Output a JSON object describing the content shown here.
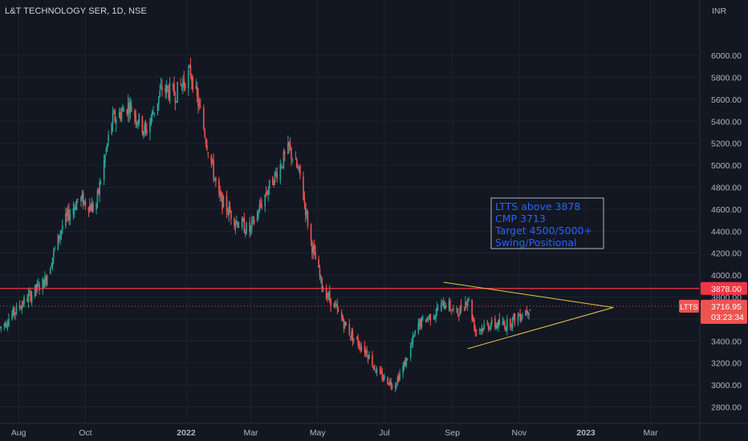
{
  "header": {
    "title": "L&T TECHNOLOGY SER, 1D, NSE",
    "currency": "INR"
  },
  "colors": {
    "background": "#131722",
    "grid": "#1e222d",
    "text": "#b2b5be",
    "up": "#26a69a",
    "down": "#ef5350",
    "resistance_line": "#f23645",
    "triangle": "#e6c547",
    "annotation_text": "#2962ff",
    "annotation_border": "#b2b5be"
  },
  "annotation": {
    "lines": [
      "LTTS above 3878",
      "CMP 3713",
      "Target 4500/5000+",
      "Swing/Positional"
    ]
  },
  "price_labels": {
    "resistance": "3878.00",
    "symbol": "LTTS",
    "last_price": "3716.95",
    "countdown": "03:23:34"
  },
  "chart_data": {
    "type": "candlestick",
    "title": "L&T TECHNOLOGY SER, 1D, NSE",
    "ylabel": "INR",
    "ylim": [
      2650,
      6300
    ],
    "y_ticks": [
      2800,
      3000,
      3200,
      3400,
      3600,
      3800,
      4000,
      4200,
      4400,
      4600,
      4800,
      5000,
      5200,
      5400,
      5600,
      5800,
      6000
    ],
    "y_tick_labels": [
      "2800.00",
      "3000.00",
      "3200.00",
      "3400.00",
      "3600.00",
      "3800.00",
      "4000.00",
      "4200.00",
      "4400.00",
      "4600.00",
      "4800.00",
      "5000.00",
      "5200.00",
      "5400.00",
      "5600.00",
      "5800.00",
      "6000.00"
    ],
    "x_ticks": [
      "Aug",
      "Oct",
      "2022",
      "Mar",
      "May",
      "Jul",
      "Sep",
      "Nov",
      "2023",
      "Mar"
    ],
    "x_tick_dates": [
      "2021-08-01",
      "2021-10-01",
      "2022-01-01",
      "2022-03-01",
      "2022-05-01",
      "2022-07-01",
      "2022-09-01",
      "2022-11-01",
      "2023-01-01",
      "2023-03-01"
    ],
    "x_range": [
      "2021-07-15",
      "2023-04-15"
    ],
    "last_date": "2022-11-12",
    "price_path": [
      [
        "2021-07-15",
        3520
      ],
      [
        "2021-08-05",
        3750
      ],
      [
        "2021-08-25",
        3950
      ],
      [
        "2021-09-10",
        4450
      ],
      [
        "2021-09-25",
        4700
      ],
      [
        "2021-10-10",
        4600
      ],
      [
        "2021-10-25",
        5400
      ],
      [
        "2021-11-10",
        5550
      ],
      [
        "2021-11-25",
        5300
      ],
      [
        "2021-12-10",
        5700
      ],
      [
        "2021-12-22",
        5650
      ],
      [
        "2022-01-05",
        5850
      ],
      [
        "2022-01-14",
        5480
      ],
      [
        "2022-01-20",
        5200
      ],
      [
        "2022-01-31",
        4700
      ],
      [
        "2022-02-15",
        4500
      ],
      [
        "2022-02-28",
        4400
      ],
      [
        "2022-03-15",
        4750
      ],
      [
        "2022-03-28",
        5000
      ],
      [
        "2022-04-05",
        5150
      ],
      [
        "2022-04-15",
        4900
      ],
      [
        "2022-04-25",
        4300
      ],
      [
        "2022-05-05",
        3900
      ],
      [
        "2022-05-20",
        3650
      ],
      [
        "2022-06-01",
        3450
      ],
      [
        "2022-06-15",
        3300
      ],
      [
        "2022-06-25",
        3100
      ],
      [
        "2022-07-10",
        3000
      ],
      [
        "2022-07-20",
        3200
      ],
      [
        "2022-08-01",
        3550
      ],
      [
        "2022-08-15",
        3650
      ],
      [
        "2022-08-25",
        3750
      ],
      [
        "2022-09-05",
        3650
      ],
      [
        "2022-09-10",
        3700
      ],
      [
        "2022-09-15",
        3800
      ],
      [
        "2022-09-22",
        3500
      ],
      [
        "2022-10-05",
        3550
      ],
      [
        "2022-10-20",
        3550
      ],
      [
        "2022-11-12",
        3713
      ]
    ],
    "resistance_level": 3878,
    "triangle": {
      "upper": [
        [
          "2022-08-24",
          3935
        ],
        [
          "2023-01-26",
          3705
        ]
      ],
      "lower": [
        [
          "2022-09-15",
          3330
        ],
        [
          "2023-01-26",
          3705
        ]
      ]
    }
  }
}
